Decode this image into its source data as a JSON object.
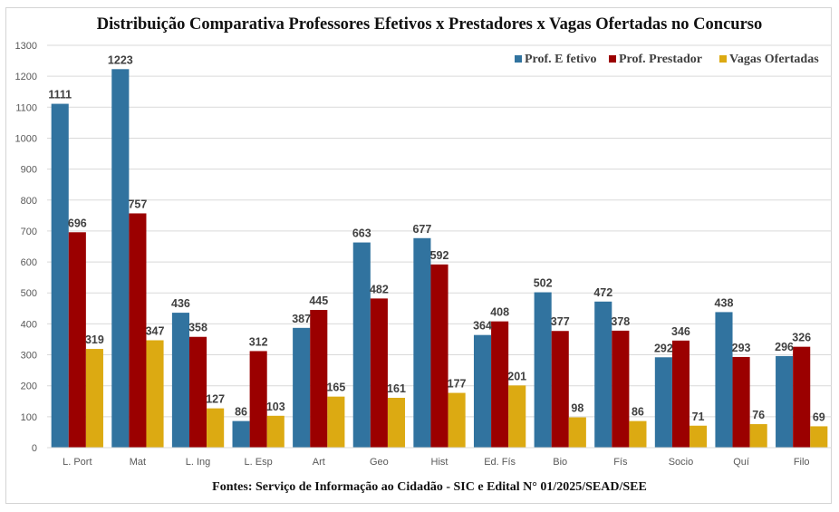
{
  "chart_data": {
    "type": "bar",
    "title": "Distribuição Comparativa Professores Efetivos x Prestadores x Vagas Ofertadas no Concurso",
    "source": "Fontes: Serviço de Informação ao Cidadão - SIC e Edital N° 01/2025/SEAD/SEE",
    "xlabel": "",
    "ylabel": "",
    "ylim": [
      0,
      1300
    ],
    "yticks": [
      0,
      100,
      200,
      300,
      400,
      500,
      600,
      700,
      800,
      900,
      1000,
      1100,
      1200,
      1300
    ],
    "grid": true,
    "legend_position": "top-right",
    "categories": [
      "L. Port",
      "Mat",
      "L. Ing",
      "L. Esp",
      "Art",
      "Geo",
      "Hist",
      "Ed. Fís",
      "Bio",
      "Fís",
      "Socio",
      "Quí",
      "Filo"
    ],
    "series": [
      {
        "name": "Prof. E fetivo",
        "color": "#31739f",
        "values": [
          1111,
          1223,
          436,
          86,
          387,
          663,
          677,
          364,
          502,
          472,
          292,
          438,
          296
        ]
      },
      {
        "name": "Prof. Prestador",
        "color": "#9b0000",
        "values": [
          696,
          757,
          358,
          312,
          445,
          482,
          592,
          408,
          377,
          378,
          346,
          293,
          326
        ]
      },
      {
        "name": "Vagas Ofertadas",
        "color": "#dcaa12",
        "values": [
          319,
          347,
          127,
          103,
          165,
          161,
          177,
          201,
          98,
          86,
          71,
          76,
          69
        ]
      }
    ]
  }
}
